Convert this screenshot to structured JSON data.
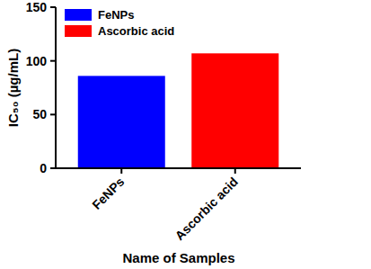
{
  "chart_data": {
    "type": "bar",
    "categories": [
      "FeNPs",
      "Ascorbic acid"
    ],
    "values": [
      86,
      107
    ],
    "colors": [
      "#0000ff",
      "#ff0000"
    ],
    "x_label": "Name of Samples",
    "y_label": "IC₅₀ (µg/mL)",
    "ylim": [
      0,
      150
    ],
    "yticks": [
      0,
      50,
      100,
      150
    ],
    "legend": "upper left",
    "grid": false
  }
}
